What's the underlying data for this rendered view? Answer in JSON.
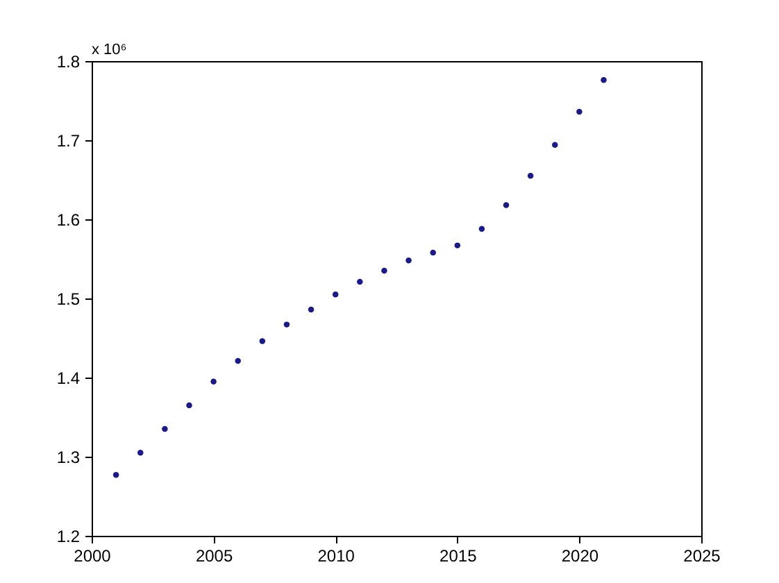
{
  "chart_data": {
    "type": "scatter",
    "x": [
      2001,
      2002,
      2003,
      2004,
      2005,
      2006,
      2007,
      2008,
      2009,
      2010,
      2011,
      2012,
      2013,
      2014,
      2015,
      2016,
      2017,
      2018,
      2019,
      2020,
      2021
    ],
    "series": [
      {
        "color": "#1a1a8c",
        "values": [
          1.277,
          1.305,
          1.335,
          1.365,
          1.395,
          1.421,
          1.446,
          1.467,
          1.486,
          1.505,
          1.521,
          1.535,
          1.548,
          1.558,
          1.567,
          1.588,
          1.618,
          1.655,
          1.694,
          1.736,
          1.776
        ]
      }
    ],
    "xlim": [
      2000,
      2025
    ],
    "xticks": [
      2000,
      2005,
      2010,
      2015,
      2020,
      2025
    ],
    "ylim": [
      1.2,
      1.8
    ],
    "yticks": [
      1.2,
      1.3,
      1.4,
      1.5,
      1.6,
      1.7,
      1.8
    ],
    "annotations": [
      "x 10⁶"
    ],
    "marker": "circle",
    "grid": false,
    "legend": false
  }
}
